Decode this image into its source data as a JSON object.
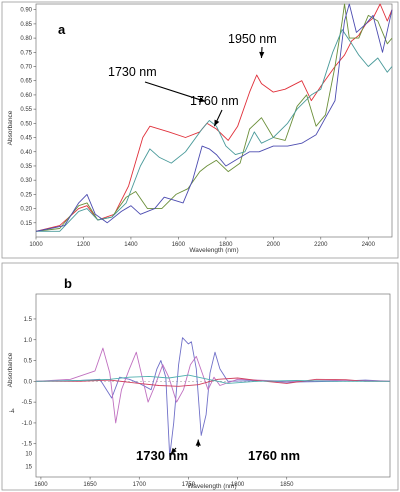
{
  "chart_data": [
    {
      "type": "line",
      "panel_label": "a",
      "xlabel": "Wavelength (nm)",
      "ylabel": "Absorbance",
      "xlim": [
        1000,
        2500
      ],
      "ylim": [
        0.1,
        0.92
      ],
      "xticks": [
        1000,
        1200,
        1400,
        1600,
        1800,
        2000,
        2200,
        2400
      ],
      "yticks": [
        0.15,
        0.2,
        0.25,
        0.3,
        0.35,
        0.4,
        0.45,
        0.5,
        0.55,
        0.6,
        0.65,
        0.7,
        0.75,
        0.8,
        0.85,
        0.9
      ],
      "ytick_labels": [
        "0.15",
        "0.20",
        "0.25",
        "0.30",
        "0.35",
        "0.40",
        "0.45",
        "0.50",
        "0.55",
        "0.60",
        "0.65",
        "0.70",
        "0.75",
        "0.80",
        "0.85",
        "0.90"
      ],
      "annotations": [
        {
          "text": "1730 nm",
          "x": 1730,
          "y": 0.57
        },
        {
          "text": "1760 nm",
          "x": 1760,
          "y": 0.49
        },
        {
          "text": "1950 nm",
          "x": 1950,
          "y": 0.73
        }
      ],
      "series": [
        {
          "color": "#e0303a",
          "points": [
            [
              1000,
              0.12
            ],
            [
              1100,
              0.14
            ],
            [
              1180,
              0.2
            ],
            [
              1215,
              0.21
            ],
            [
              1260,
              0.16
            ],
            [
              1330,
              0.18
            ],
            [
              1390,
              0.28
            ],
            [
              1450,
              0.45
            ],
            [
              1480,
              0.49
            ],
            [
              1560,
              0.47
            ],
            [
              1630,
              0.45
            ],
            [
              1690,
              0.47
            ],
            [
              1720,
              0.5
            ],
            [
              1760,
              0.48
            ],
            [
              1810,
              0.44
            ],
            [
              1850,
              0.49
            ],
            [
              1900,
              0.61
            ],
            [
              1930,
              0.67
            ],
            [
              1950,
              0.64
            ],
            [
              2000,
              0.61
            ],
            [
              2050,
              0.62
            ],
            [
              2120,
              0.65
            ],
            [
              2160,
              0.58
            ],
            [
              2200,
              0.63
            ],
            [
              2260,
              0.7
            ],
            [
              2300,
              0.74
            ],
            [
              2330,
              0.79
            ],
            [
              2360,
              0.81
            ],
            [
              2390,
              0.85
            ],
            [
              2420,
              0.87
            ],
            [
              2450,
              0.92
            ],
            [
              2480,
              0.86
            ],
            [
              2500,
              0.9
            ]
          ]
        },
        {
          "color": "#6b8f3a",
          "points": [
            [
              1000,
              0.12
            ],
            [
              1100,
              0.13
            ],
            [
              1180,
              0.21
            ],
            [
              1215,
              0.22
            ],
            [
              1260,
              0.16
            ],
            [
              1320,
              0.17
            ],
            [
              1380,
              0.24
            ],
            [
              1420,
              0.26
            ],
            [
              1470,
              0.2
            ],
            [
              1530,
              0.2
            ],
            [
              1590,
              0.25
            ],
            [
              1640,
              0.27
            ],
            [
              1690,
              0.33
            ],
            [
              1720,
              0.35
            ],
            [
              1760,
              0.37
            ],
            [
              1810,
              0.33
            ],
            [
              1860,
              0.36
            ],
            [
              1900,
              0.48
            ],
            [
              1950,
              0.52
            ],
            [
              2000,
              0.45
            ],
            [
              2050,
              0.44
            ],
            [
              2100,
              0.56
            ],
            [
              2140,
              0.6
            ],
            [
              2180,
              0.49
            ],
            [
              2220,
              0.53
            ],
            [
              2260,
              0.7
            ],
            [
              2290,
              0.86
            ],
            [
              2300,
              0.92
            ],
            [
              2320,
              0.8
            ],
            [
              2360,
              0.8
            ],
            [
              2400,
              0.88
            ],
            [
              2440,
              0.86
            ],
            [
              2480,
              0.78
            ],
            [
              2500,
              0.8
            ]
          ]
        },
        {
          "color": "#4a9a9a",
          "points": [
            [
              1000,
              0.12
            ],
            [
              1100,
              0.12
            ],
            [
              1180,
              0.19
            ],
            [
              1215,
              0.2
            ],
            [
              1260,
              0.16
            ],
            [
              1320,
              0.17
            ],
            [
              1380,
              0.22
            ],
            [
              1440,
              0.35
            ],
            [
              1480,
              0.41
            ],
            [
              1520,
              0.38
            ],
            [
              1570,
              0.36
            ],
            [
              1630,
              0.4
            ],
            [
              1700,
              0.48
            ],
            [
              1730,
              0.51
            ],
            [
              1760,
              0.49
            ],
            [
              1800,
              0.42
            ],
            [
              1840,
              0.39
            ],
            [
              1880,
              0.4
            ],
            [
              1920,
              0.47
            ],
            [
              1950,
              0.43
            ],
            [
              2000,
              0.45
            ],
            [
              2060,
              0.5
            ],
            [
              2100,
              0.55
            ],
            [
              2160,
              0.6
            ],
            [
              2200,
              0.62
            ],
            [
              2250,
              0.75
            ],
            [
              2290,
              0.83
            ],
            [
              2330,
              0.78
            ],
            [
              2360,
              0.74
            ],
            [
              2400,
              0.7
            ],
            [
              2440,
              0.73
            ],
            [
              2480,
              0.68
            ],
            [
              2500,
              0.7
            ]
          ]
        },
        {
          "color": "#4c4cb0",
          "points": [
            [
              1000,
              0.12
            ],
            [
              1060,
              0.13
            ],
            [
              1120,
              0.14
            ],
            [
              1180,
              0.22
            ],
            [
              1215,
              0.25
            ],
            [
              1250,
              0.18
            ],
            [
              1300,
              0.15
            ],
            [
              1360,
              0.19
            ],
            [
              1400,
              0.21
            ],
            [
              1440,
              0.18
            ],
            [
              1500,
              0.2
            ],
            [
              1540,
              0.24
            ],
            [
              1580,
              0.23
            ],
            [
              1620,
              0.22
            ],
            [
              1660,
              0.3
            ],
            [
              1700,
              0.42
            ],
            [
              1730,
              0.41
            ],
            [
              1760,
              0.39
            ],
            [
              1800,
              0.35
            ],
            [
              1840,
              0.37
            ],
            [
              1900,
              0.4
            ],
            [
              1940,
              0.4
            ],
            [
              2000,
              0.42
            ],
            [
              2060,
              0.42
            ],
            [
              2120,
              0.43
            ],
            [
              2180,
              0.46
            ],
            [
              2220,
              0.52
            ],
            [
              2260,
              0.58
            ],
            [
              2300,
              0.86
            ],
            [
              2320,
              0.92
            ],
            [
              2350,
              0.82
            ],
            [
              2390,
              0.85
            ],
            [
              2420,
              0.88
            ],
            [
              2460,
              0.75
            ],
            [
              2500,
              0.9
            ]
          ]
        }
      ]
    },
    {
      "type": "line",
      "panel_label": "b",
      "xlabel": "Wavelength (nm)",
      "ylabel": "Absorbance",
      "xlim": [
        1595,
        1955
      ],
      "ylim": [
        -2.3,
        2.1
      ],
      "xticks": [
        1600,
        1650,
        1700,
        1750,
        1800,
        1850
      ],
      "yticks": [
        1.5,
        1.0,
        0.5,
        0.0,
        -0.5,
        -1.0,
        -1.5
      ],
      "ytick_labels": [
        "1.5",
        "1.0",
        "0.5",
        "0.0",
        "-0.5",
        "-1.0",
        "-1.5"
      ],
      "extra_ytick_labels": [
        {
          "text": "10",
          "y": -1.73
        },
        {
          "text": "15",
          "y": -2.05
        }
      ],
      "outside_label": "-4",
      "annotations": [
        {
          "text": "1730 nm",
          "x": 1730,
          "y": -1.75
        },
        {
          "text": "1760 nm",
          "x": 1760,
          "y": -1.4
        }
      ],
      "series": [
        {
          "color": "#7070c8",
          "points": [
            [
              1595,
              0.0
            ],
            [
              1640,
              0.02
            ],
            [
              1660,
              0.05
            ],
            [
              1672,
              -0.4
            ],
            [
              1680,
              0.1
            ],
            [
              1690,
              0.05
            ],
            [
              1700,
              -0.05
            ],
            [
              1712,
              -0.2
            ],
            [
              1718,
              0.3
            ],
            [
              1722,
              0.5
            ],
            [
              1727,
              0.1
            ],
            [
              1731,
              -1.8
            ],
            [
              1735,
              -1.0
            ],
            [
              1740,
              0.4
            ],
            [
              1744,
              1.05
            ],
            [
              1750,
              0.9
            ],
            [
              1753,
              0.95
            ],
            [
              1758,
              0.3
            ],
            [
              1763,
              -1.3
            ],
            [
              1768,
              -0.8
            ],
            [
              1772,
              0.2
            ],
            [
              1777,
              0.7
            ],
            [
              1782,
              0.3
            ],
            [
              1790,
              0.0
            ],
            [
              1820,
              0.02
            ],
            [
              1850,
              -0.02
            ],
            [
              1900,
              0.0
            ],
            [
              1930,
              0.03
            ],
            [
              1955,
              0.0
            ]
          ]
        },
        {
          "color": "#c070c0",
          "points": [
            [
              1595,
              0.0
            ],
            [
              1630,
              0.05
            ],
            [
              1655,
              0.25
            ],
            [
              1663,
              0.8
            ],
            [
              1670,
              0.2
            ],
            [
              1676,
              -1.0
            ],
            [
              1682,
              -0.2
            ],
            [
              1690,
              0.3
            ],
            [
              1697,
              0.7
            ],
            [
              1703,
              0.1
            ],
            [
              1709,
              -0.5
            ],
            [
              1716,
              -0.1
            ],
            [
              1724,
              0.4
            ],
            [
              1730,
              0.1
            ],
            [
              1738,
              -0.5
            ],
            [
              1745,
              -0.2
            ],
            [
              1752,
              0.4
            ],
            [
              1758,
              0.6
            ],
            [
              1764,
              0.2
            ],
            [
              1770,
              -0.2
            ],
            [
              1776,
              0.1
            ],
            [
              1782,
              -0.1
            ],
            [
              1800,
              0.05
            ],
            [
              1850,
              0.0
            ],
            [
              1900,
              0.02
            ],
            [
              1955,
              0.0
            ]
          ]
        },
        {
          "color": "#d04060",
          "points": [
            [
              1595,
              0.0
            ],
            [
              1640,
              0.0
            ],
            [
              1670,
              0.03
            ],
            [
              1700,
              -0.05
            ],
            [
              1720,
              -0.1
            ],
            [
              1740,
              -0.12
            ],
            [
              1760,
              -0.08
            ],
            [
              1780,
              0.05
            ],
            [
              1800,
              0.08
            ],
            [
              1820,
              0.02
            ],
            [
              1850,
              -0.05
            ],
            [
              1880,
              0.05
            ],
            [
              1910,
              0.04
            ],
            [
              1930,
              0.0
            ],
            [
              1955,
              0.0
            ]
          ]
        },
        {
          "color": "#50b0b0",
          "points": [
            [
              1595,
              0.0
            ],
            [
              1640,
              0.02
            ],
            [
              1670,
              0.05
            ],
            [
              1690,
              0.1
            ],
            [
              1710,
              0.12
            ],
            [
              1730,
              0.08
            ],
            [
              1750,
              0.15
            ],
            [
              1770,
              0.05
            ],
            [
              1790,
              -0.05
            ],
            [
              1820,
              0.0
            ],
            [
              1860,
              0.02
            ],
            [
              1900,
              0.0
            ],
            [
              1955,
              0.0
            ]
          ]
        }
      ]
    }
  ]
}
